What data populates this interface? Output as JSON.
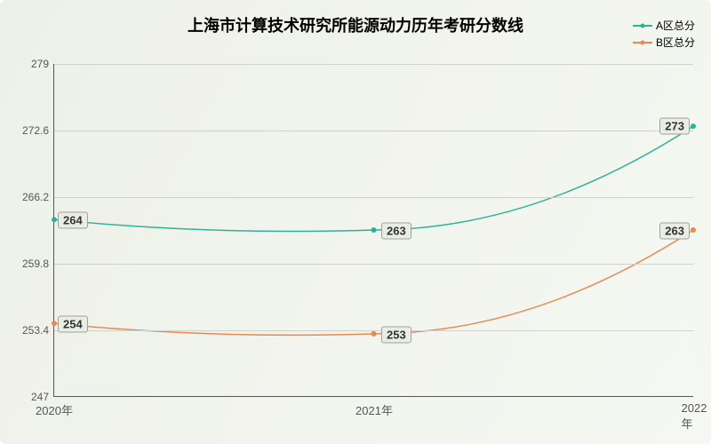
{
  "chart": {
    "type": "line",
    "title": "上海市计算技术研究所能源动力历年考研分数线",
    "title_fontsize": 18,
    "background_gradient": [
      "#eef1e8",
      "#f5f7f2"
    ],
    "grid_color": "#cfd2cc",
    "axis_color": "#565656",
    "label_text_color": "#333333",
    "label_fontsize": 13,
    "tick_fontsize": 12,
    "x": {
      "categories": [
        "2020年",
        "2021年",
        "2022年"
      ],
      "positions": [
        0,
        0.5,
        1
      ]
    },
    "y": {
      "min": 247,
      "max": 279,
      "ticks": [
        247,
        253.4,
        259.8,
        266.2,
        272.6,
        279
      ]
    },
    "series": [
      {
        "name": "A区总分",
        "color": "#2bb39a",
        "line_width": 1.5,
        "values": [
          264,
          263,
          273
        ],
        "smooth": true
      },
      {
        "name": "B区总分",
        "color": "#e98950",
        "line_width": 1.5,
        "values": [
          254,
          253,
          263
        ],
        "smooth": true
      }
    ],
    "data_label": {
      "bg": "#e9ede4",
      "border": "#9ea29b"
    }
  }
}
